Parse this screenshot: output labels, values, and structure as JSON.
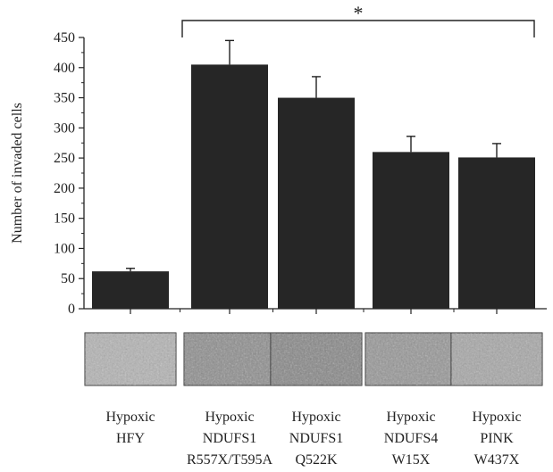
{
  "chart_data": {
    "type": "bar",
    "ylabel": "Number of invaded cells",
    "ylim": [
      0,
      450
    ],
    "yticks": [
      0,
      50,
      100,
      150,
      200,
      250,
      300,
      350,
      400,
      450
    ],
    "categories": [
      [
        "Hypoxic",
        "HFY",
        ""
      ],
      [
        "Hypoxic",
        "NDUFS1",
        "R557X/T595A"
      ],
      [
        "Hypoxic",
        "NDUFS1",
        "Q522K"
      ],
      [
        "Hypoxic",
        "NDUFS4",
        "W15X"
      ],
      [
        "Hypoxic",
        "PINK",
        "W437X"
      ]
    ],
    "values": [
      62,
      405,
      350,
      260,
      251
    ],
    "errors": [
      5,
      40,
      35,
      26,
      23
    ],
    "bar_color": "#262626",
    "significance": {
      "label": "*",
      "from_category": 1,
      "to_category": 4
    },
    "grid": false,
    "legend": "none"
  },
  "micrographs": [
    {
      "name": "Hypoxic HFY",
      "tone": "#b3b3b3"
    },
    {
      "name": "Hypoxic NDUFS1 R557X/T595A",
      "tone": "#8c8c8c"
    },
    {
      "name": "Hypoxic NDUFS1 Q522K",
      "tone": "#858585"
    },
    {
      "name": "Hypoxic NDUFS4 W15X",
      "tone": "#959595"
    },
    {
      "name": "Hypoxic PINK W437X",
      "tone": "#a6a6a6"
    }
  ]
}
